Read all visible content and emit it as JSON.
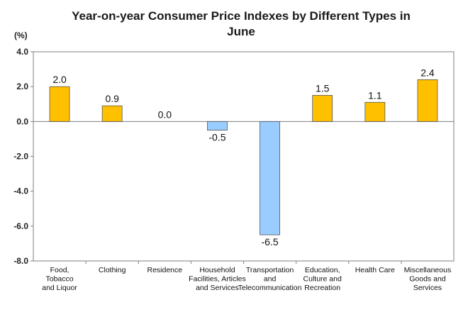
{
  "chart_data": {
    "type": "bar",
    "title_lines": [
      "Year-on-year Consumer Price Indexes by Different Types in",
      "June"
    ],
    "ylabel": "(%)",
    "ylim": [
      -8.0,
      4.0
    ],
    "yticks": [
      "4.0",
      "2.0",
      "0.0",
      "-2.0",
      "-4.0",
      "-6.0",
      "-8.0"
    ],
    "categories": [
      [
        "Food,",
        "Tobacco",
        "and Liquor"
      ],
      [
        "Clothing"
      ],
      [
        "Residence"
      ],
      [
        "Household",
        "Facilities, Articles",
        "and Services"
      ],
      [
        "Transportation",
        "and",
        "Telecommunication"
      ],
      [
        "Education,",
        "Culture and",
        "Recreation"
      ],
      [
        "Health Care"
      ],
      [
        "Miscellaneous",
        "Goods and",
        "Services"
      ]
    ],
    "values": [
      2.0,
      0.9,
      0.0,
      -0.5,
      -6.5,
      1.5,
      1.1,
      2.4
    ],
    "value_labels": [
      "2.0",
      "0.9",
      "0.0",
      "-0.5",
      "-6.5",
      "1.5",
      "1.1",
      "2.4"
    ],
    "colors": {
      "positive": "#FFC000",
      "negative": "#99CCFF",
      "bar_edge": "#555555",
      "axis": "#7f7f7f"
    },
    "legend": "none",
    "grid": false
  }
}
